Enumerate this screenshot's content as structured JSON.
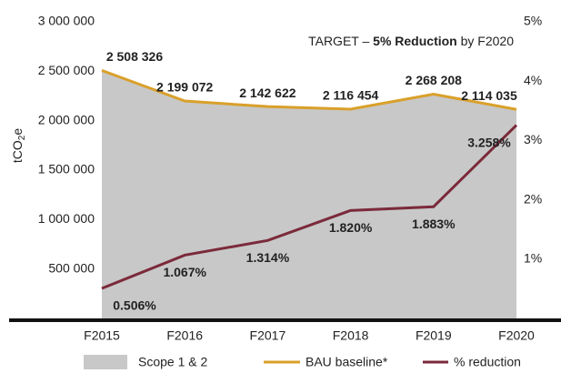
{
  "chart_data": {
    "type": "area-line",
    "annotation": {
      "lead": "TARGET – ",
      "bold": "5% Reduction",
      "tail": " by F2020"
    },
    "y_label": {
      "lead": "tCO",
      "sub": "2",
      "tail": "e"
    },
    "categories": [
      "F2015",
      "F2016",
      "F2017",
      "F2018",
      "F2019",
      "F2020"
    ],
    "ylim": [
      0,
      3000000
    ],
    "yticks": [
      {
        "value": 500000,
        "label": "500 000"
      },
      {
        "value": 1000000,
        "label": "1 000 000"
      },
      {
        "value": 1500000,
        "label": "1 500 000"
      },
      {
        "value": 2000000,
        "label": "2 000 000"
      },
      {
        "value": 2500000,
        "label": "2 500 000"
      },
      {
        "value": 3000000,
        "label": "3 000 000"
      }
    ],
    "y2lim": [
      0,
      5
    ],
    "y2ticks": [
      {
        "value": 1,
        "label": "1%"
      },
      {
        "value": 2,
        "label": "2%"
      },
      {
        "value": 3,
        "label": "3%"
      },
      {
        "value": 4,
        "label": "4%"
      },
      {
        "value": 5,
        "label": "5%"
      }
    ],
    "series": [
      {
        "name": "Scope 1 & 2",
        "kind": "area",
        "color": "#c8c8c8",
        "values": [
          2508326,
          2199072,
          2142622,
          2116454,
          2268208,
          2114035
        ]
      },
      {
        "name": "BAU baseline*",
        "kind": "line",
        "color": "#d9a02a",
        "values": [
          2508326,
          2199072,
          2142622,
          2116454,
          2268208,
          2114035
        ],
        "value_labels": [
          "2 508 326",
          "2 199 072",
          "2 142 622",
          "2 116 454",
          "2 268 208",
          "2 114 035"
        ]
      },
      {
        "name": "% reduction",
        "kind": "line",
        "axis": "y2",
        "color": "#7b2a3a",
        "values": [
          0.506,
          1.067,
          1.314,
          1.82,
          1.883,
          3.258
        ],
        "value_labels": [
          "0.506%",
          "1.067%",
          "1.314%",
          "1.820%",
          "1.883%",
          "3.258%"
        ]
      }
    ]
  }
}
